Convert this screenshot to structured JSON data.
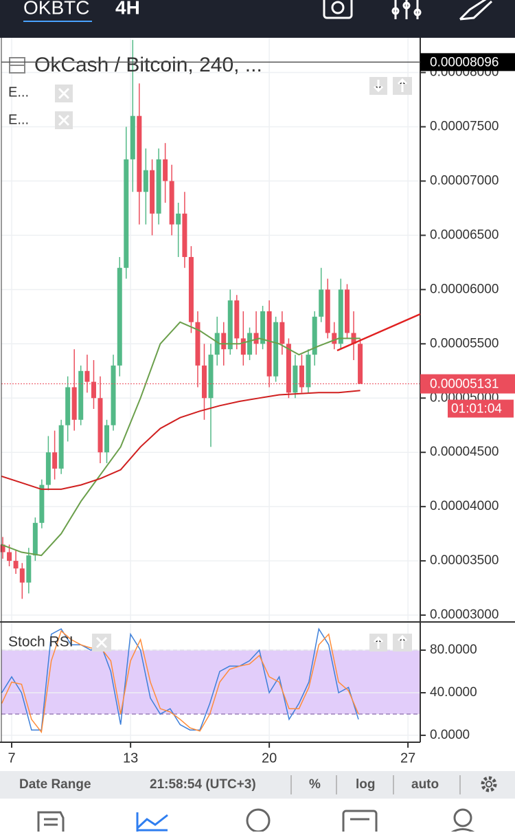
{
  "header": {
    "symbol": "OKBTC",
    "interval": "4H"
  },
  "chart_data": [
    {
      "type": "candlestick",
      "title": "OkCash / Bitcoin, 240, ...",
      "x": [
        6.55,
        6.88,
        7.21,
        7.53,
        7.86,
        8.19,
        8.52,
        8.85,
        9.17,
        9.5,
        9.83,
        10.16,
        10.49,
        10.81,
        11.14,
        11.47,
        11.8,
        12.13,
        12.45,
        12.78,
        13.11,
        13.44,
        13.77,
        14.09,
        14.42,
        14.75,
        15.08,
        15.41,
        15.73,
        16.06,
        16.39,
        16.72,
        17.05,
        17.37,
        17.7,
        18.03,
        18.36,
        18.69,
        19.01,
        19.34,
        19.67,
        20.0,
        20.33,
        20.65,
        20.98,
        21.31,
        21.64,
        21.97,
        22.29,
        22.62,
        22.95,
        23.28,
        23.61,
        23.93,
        24.26,
        24.59
      ],
      "open": [
        3.65e-05,
        3.58e-05,
        3.5e-05,
        3.43e-05,
        3.3e-05,
        3.55e-05,
        3.85e-05,
        4.2e-05,
        4.5e-05,
        4.35e-05,
        4.75e-05,
        5.1e-05,
        4.8e-05,
        5.25e-05,
        5.15e-05,
        5e-05,
        4.5e-05,
        4.75e-05,
        5.3e-05,
        6.2e-05,
        7.2e-05,
        7.6e-05,
        6.9e-05,
        7.1e-05,
        6.7e-05,
        7.2e-05,
        7e-05,
        6.6e-05,
        6.7e-05,
        6.3e-05,
        5.7e-05,
        5.3e-05,
        5e-05,
        5.4e-05,
        5.6e-05,
        5.45e-05,
        5.9e-05,
        5.55e-05,
        5.4e-05,
        5.6e-05,
        5.5e-05,
        5.8e-05,
        5.2e-05,
        5.7e-05,
        5.5e-05,
        5.05e-05,
        5.3e-05,
        5.1e-05,
        5.4e-05,
        5.75e-05,
        6e-05,
        5.6e-05,
        5.5e-05,
        6e-05,
        5.6e-05,
        5.5e-05
      ],
      "high": [
        3.72e-05,
        3.65e-05,
        3.6e-05,
        3.48e-05,
        3.62e-05,
        3.9e-05,
        4.25e-05,
        4.65e-05,
        4.7e-05,
        4.8e-05,
        5.2e-05,
        5.45e-05,
        5.3e-05,
        5.4e-05,
        5.35e-05,
        5.2e-05,
        4.8e-05,
        5.4e-05,
        6.3e-05,
        7.5e-05,
        8.3e-05,
        7.9e-05,
        7.3e-05,
        7.2e-05,
        7.3e-05,
        7.35e-05,
        7.15e-05,
        6.8e-05,
        6.9e-05,
        6.4e-05,
        5.8e-05,
        5.5e-05,
        5.5e-05,
        5.75e-05,
        5.7e-05,
        6e-05,
        5.95e-05,
        5.8e-05,
        5.65e-05,
        5.8e-05,
        5.85e-05,
        5.9e-05,
        5.75e-05,
        5.8e-05,
        5.55e-05,
        5.4e-05,
        5.4e-05,
        5.45e-05,
        5.8e-05,
        6.2e-05,
        6.1e-05,
        5.7e-05,
        6.1e-05,
        6.05e-05,
        5.8e-05,
        5.55e-05
      ],
      "low": [
        3.52e-05,
        3.45e-05,
        3.38e-05,
        3.15e-05,
        3.2e-05,
        3.5e-05,
        3.8e-05,
        4.15e-05,
        4.25e-05,
        4.3e-05,
        4.6e-05,
        4.7e-05,
        4.75e-05,
        5.05e-05,
        4.9e-05,
        4.4e-05,
        4.4e-05,
        4.7e-05,
        5.2e-05,
        6.1e-05,
        6.9e-05,
        6.6e-05,
        6.6e-05,
        6.5e-05,
        6.6e-05,
        6.8e-05,
        6.5e-05,
        6.3e-05,
        6.2e-05,
        5.6e-05,
        5.1e-05,
        4.8e-05,
        4.55e-05,
        5.3e-05,
        5.3e-05,
        5.4e-05,
        5.45e-05,
        5.3e-05,
        5.35e-05,
        5.4e-05,
        5.45e-05,
        5.1e-05,
        5.15e-05,
        5.4e-05,
        5e-05,
        5e-05,
        5.05e-05,
        5.05e-05,
        5.3e-05,
        5.7e-05,
        5.55e-05,
        5.45e-05,
        5.45e-05,
        5.55e-05,
        5.35e-05,
        5.15e-05
      ],
      "close": [
        3.58e-05,
        3.5e-05,
        3.43e-05,
        3.3e-05,
        3.55e-05,
        3.85e-05,
        4.2e-05,
        4.5e-05,
        4.35e-05,
        4.75e-05,
        5.1e-05,
        4.8e-05,
        5.25e-05,
        5.15e-05,
        5e-05,
        4.5e-05,
        4.75e-05,
        5.3e-05,
        6.2e-05,
        7.2e-05,
        7.6e-05,
        6.9e-05,
        7.1e-05,
        6.7e-05,
        7.2e-05,
        7e-05,
        6.6e-05,
        6.7e-05,
        6.3e-05,
        5.7e-05,
        5.3e-05,
        5e-05,
        5.4e-05,
        5.6e-05,
        5.45e-05,
        5.9e-05,
        5.55e-05,
        5.4e-05,
        5.6e-05,
        5.5e-05,
        5.8e-05,
        5.2e-05,
        5.7e-05,
        5.5e-05,
        5.05e-05,
        5.3e-05,
        5.1e-05,
        5.4e-05,
        5.75e-05,
        6e-05,
        5.6e-05,
        5.5e-05,
        6e-05,
        5.6e-05,
        5.5e-05,
        5.131e-05
      ],
      "up_color": "#53b987",
      "down_color": "#eb4d5c",
      "series": [
        {
          "name": "E...",
          "color": "#6a9f4b",
          "x": [
            6.48,
            7.5,
            8.5,
            9.5,
            10.5,
            11.5,
            12.5,
            13.5,
            14.5,
            15.5,
            16.5,
            17.5,
            18.5,
            19.5,
            20.5,
            21.5,
            22.5,
            23.5,
            24.59
          ],
          "values": [
            3.65e-05,
            3.58e-05,
            3.55e-05,
            3.75e-05,
            4.05e-05,
            4.3e-05,
            4.55e-05,
            5e-05,
            5.5e-05,
            5.7e-05,
            5.62e-05,
            5.5e-05,
            5.5e-05,
            5.55e-05,
            5.5e-05,
            5.4e-05,
            5.48e-05,
            5.55e-05,
            5.55e-05
          ]
        },
        {
          "name": "E...",
          "color": "#d01f1f",
          "x": [
            6.48,
            7.5,
            8.5,
            9.5,
            10.5,
            11.5,
            12.5,
            13.5,
            14.5,
            15.5,
            16.5,
            17.5,
            18.5,
            19.5,
            20.5,
            21.5,
            22.5,
            23.5,
            24.59
          ],
          "values": [
            4.28e-05,
            4.22e-05,
            4.16e-05,
            4.16e-05,
            4.2e-05,
            4.26e-05,
            4.34e-05,
            4.55e-05,
            4.72e-05,
            4.82e-05,
            4.88e-05,
            4.93e-05,
            4.97e-05,
            5e-05,
            5.03e-05,
            5.04e-05,
            5.05e-05,
            5.05e-05,
            5.07e-05
          ]
        }
      ],
      "xlim": [
        6.48,
        27.62
      ],
      "xticks": [
        7,
        13,
        20,
        27
      ],
      "ylim": [
        2.937e-05,
        8.32e-05
      ],
      "yticks": [
        {
          "value": 3e-05,
          "label": "0.00003000"
        },
        {
          "value": 3.5e-05,
          "label": "0.00003500"
        },
        {
          "value": 4e-05,
          "label": "0.00004000"
        },
        {
          "value": 4.5e-05,
          "label": "0.00004500"
        },
        {
          "value": 5e-05,
          "label": "0.00005000"
        },
        {
          "value": 5.5e-05,
          "label": "0.00005500"
        },
        {
          "value": 6e-05,
          "label": "0.00006000"
        },
        {
          "value": 6.5e-05,
          "label": "0.00006500"
        },
        {
          "value": 7e-05,
          "label": "0.00007000"
        },
        {
          "value": 7.5e-05,
          "label": "0.00007500"
        },
        {
          "value": 8e-05,
          "label": "0.00008000"
        }
      ],
      "grid": true,
      "last_price": {
        "value": 5.131e-05,
        "label": "0.00005131"
      },
      "countdown": "01:01:04",
      "crosshair_price": {
        "value": 8.096e-05,
        "label": "0.00008096"
      }
    },
    {
      "type": "line",
      "title": "Stoch RSI",
      "x": [
        6.5,
        7,
        7.5,
        8,
        8.5,
        9,
        9.5,
        10,
        10.5,
        11,
        11.5,
        12,
        12.5,
        13,
        13.5,
        14,
        14.5,
        15,
        15.5,
        16,
        16.5,
        17,
        17.5,
        18,
        18.5,
        19,
        19.5,
        20,
        20.5,
        21,
        21.5,
        22,
        22.5,
        23,
        23.5,
        24,
        24.5
      ],
      "series": [
        {
          "color": "#3d7fd9",
          "values": [
            40,
            55,
            40,
            5,
            5,
            95,
            100,
            85,
            85,
            80,
            85,
            60,
            10,
            95,
            80,
            35,
            20,
            25,
            10,
            5,
            5,
            30,
            60,
            65,
            65,
            70,
            80,
            40,
            55,
            15,
            30,
            50,
            100,
            85,
            40,
            45,
            15
          ]
        },
        {
          "color": "#ff8c3a",
          "values": [
            30,
            50,
            48,
            15,
            3,
            70,
            98,
            90,
            85,
            82,
            82,
            70,
            20,
            70,
            90,
            50,
            25,
            22,
            15,
            7,
            4,
            20,
            50,
            62,
            65,
            67,
            75,
            55,
            50,
            25,
            25,
            45,
            85,
            95,
            50,
            42,
            20
          ]
        }
      ],
      "band": [
        20,
        80
      ],
      "band_color": "#e2cdfa",
      "xlim": [
        6.48,
        27.62
      ],
      "ylim": [
        -6.5,
        106.5
      ],
      "yticks": [
        {
          "value": 0,
          "label": "0.0000"
        },
        {
          "value": 40,
          "label": "40.0000"
        },
        {
          "value": 80,
          "label": "80.0000"
        }
      ]
    }
  ],
  "toolbar": {
    "date_range": "Date Range",
    "time": "21:58:54 (UTC+3)",
    "percent": "%",
    "log": "log",
    "auto": "auto"
  }
}
